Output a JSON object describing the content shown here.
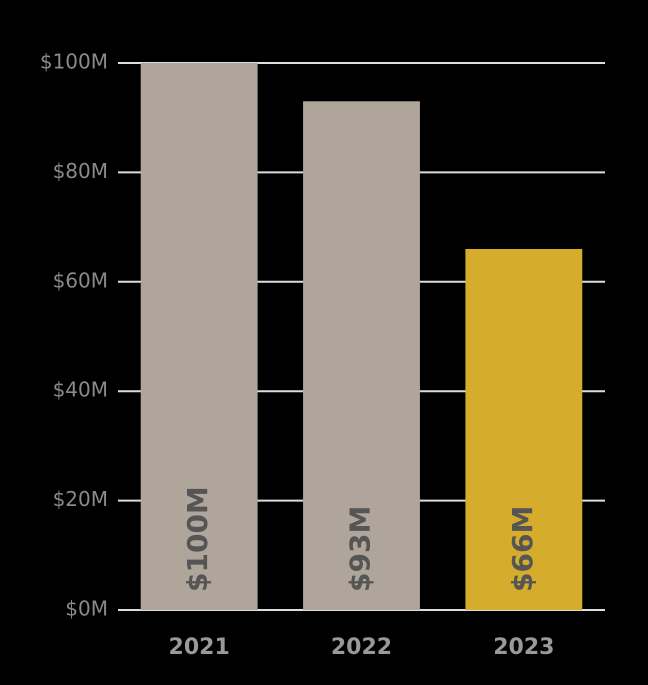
{
  "chart_data": {
    "type": "bar",
    "categories": [
      "2021",
      "2022",
      "2023"
    ],
    "values": [
      100,
      93,
      66
    ],
    "value_labels": [
      "$100M",
      "$93M",
      "$66M"
    ],
    "colors": [
      "#afa59a",
      "#afa59a",
      "#d5ac2b"
    ],
    "ylim": [
      0,
      100
    ],
    "yticks": [
      {
        "value": 0,
        "label": "$0M"
      },
      {
        "value": 20,
        "label": "$20M"
      },
      {
        "value": 40,
        "label": "$40M"
      },
      {
        "value": 60,
        "label": "$60M"
      },
      {
        "value": 80,
        "label": "$80M"
      },
      {
        "value": 100,
        "label": "$100M"
      }
    ],
    "grid": true
  }
}
